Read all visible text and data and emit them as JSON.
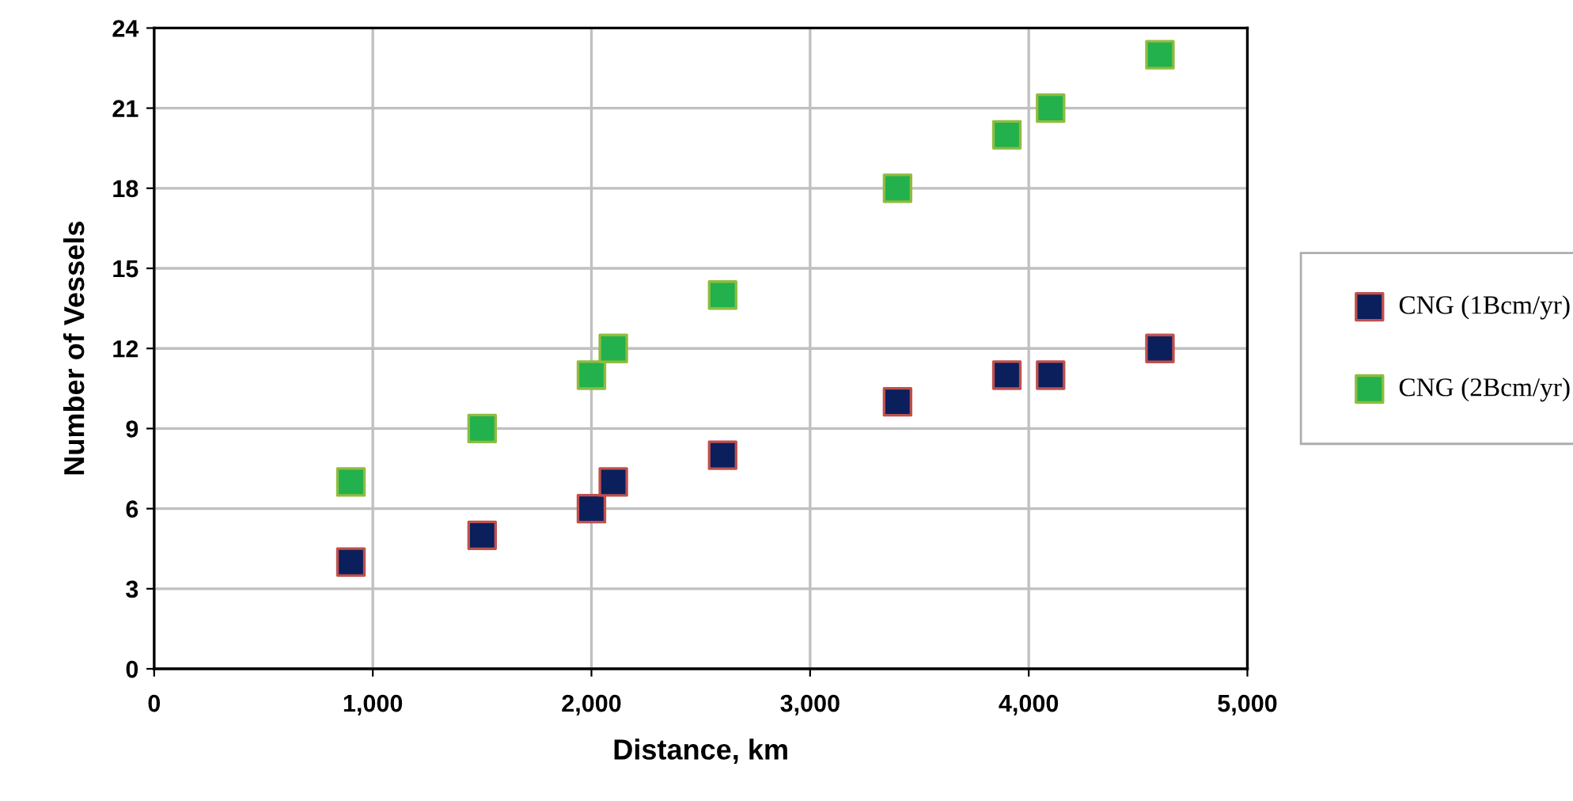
{
  "chart_data": {
    "type": "scatter",
    "xlabel": "Distance, km",
    "ylabel": "Number of Vessels",
    "x": [
      900,
      1500,
      2000,
      2100,
      2600,
      3400,
      3900,
      4100,
      4600
    ],
    "series": [
      {
        "name": "CNG (1Bcm/yr)",
        "color": "#0a1f5c",
        "values": [
          4,
          5,
          6,
          7,
          8,
          10,
          11,
          11,
          12
        ]
      },
      {
        "name": "CNG (2Bcm/yr)",
        "color": "#22b14c",
        "values": [
          7,
          9,
          11,
          12,
          14,
          18,
          20,
          21,
          23
        ]
      }
    ],
    "xlim": [
      0,
      5000
    ],
    "xticks": [
      {
        "value": 0,
        "label": "0"
      },
      {
        "value": 1000,
        "label": "1,000"
      },
      {
        "value": 2000,
        "label": "2,000"
      },
      {
        "value": 3000,
        "label": "3,000"
      },
      {
        "value": 4000,
        "label": "4,000"
      },
      {
        "value": 5000,
        "label": "5,000"
      }
    ],
    "ylim": [
      0,
      24
    ],
    "yticks": [
      0,
      3,
      6,
      9,
      12,
      15,
      18,
      21,
      24
    ],
    "grid": true,
    "legend": "right",
    "marker": "square"
  }
}
